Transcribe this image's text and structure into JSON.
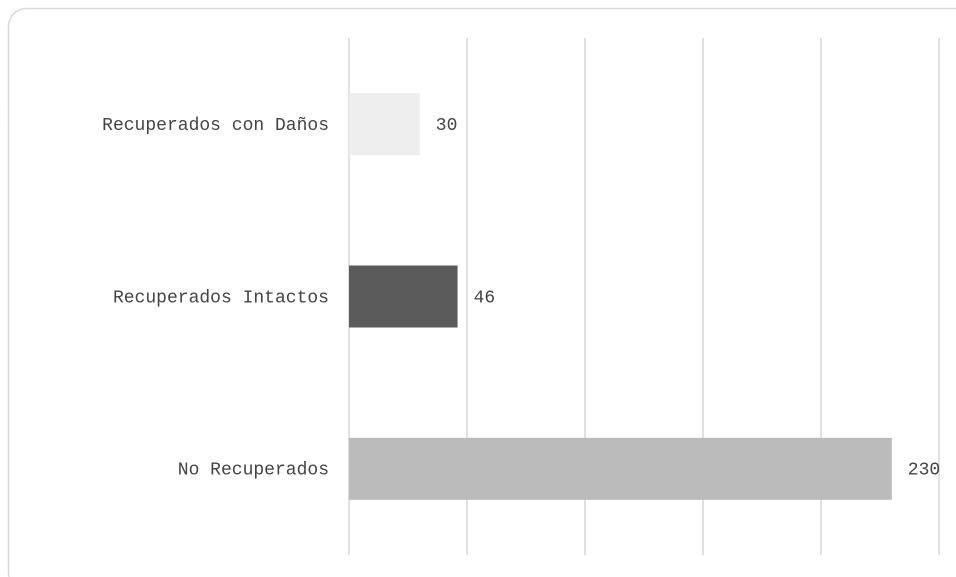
{
  "chart_data": {
    "type": "bar",
    "orientation": "horizontal",
    "categories": [
      "Recuperados con Daños",
      "Recuperados Intactos",
      "No Recuperados"
    ],
    "values": [
      30,
      46,
      230
    ],
    "colors": [
      "#eeeeee",
      "#5b5b5b",
      "#bbbbbb"
    ],
    "xlim": [
      0,
      250
    ],
    "xticks": [
      0,
      50,
      100,
      150,
      200,
      250
    ],
    "grid": true
  }
}
